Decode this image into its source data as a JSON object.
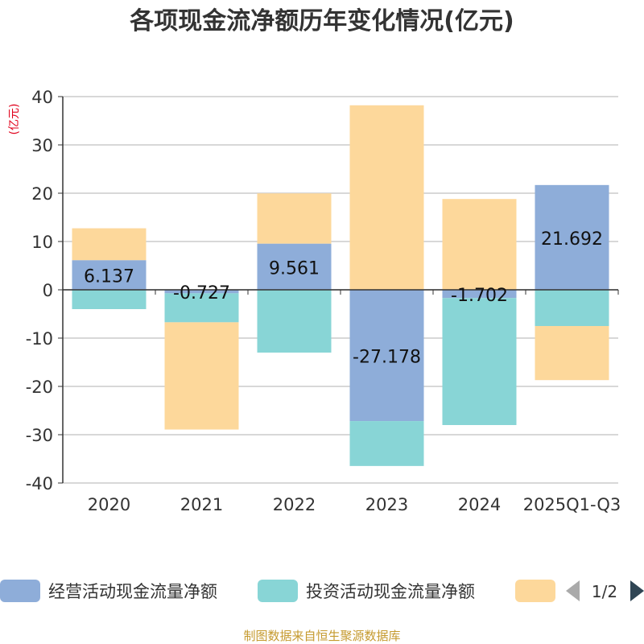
{
  "chart_data": {
    "type": "bar",
    "stacked": true,
    "title": "各项现金流净额历年变化情况(亿元)",
    "ylabel": "(亿元)",
    "ylim": [
      -40,
      40
    ],
    "yticks": [
      40,
      30,
      20,
      10,
      0,
      -10,
      -20,
      -30,
      -40
    ],
    "categories": [
      "2020",
      "2021",
      "2022",
      "2023",
      "2024",
      "2025Q1-Q3"
    ],
    "series": [
      {
        "name": "经营活动现金流量净额",
        "color": "#8eadd9",
        "values": [
          6.137,
          -0.727,
          9.561,
          -27.178,
          -1.702,
          21.692
        ],
        "show_labels": true
      },
      {
        "name": "投资活动现金流量净额",
        "color": "#88d5d6",
        "values": [
          -4.0,
          -6.0,
          -13.0,
          -9.3,
          -26.3,
          -7.5
        ],
        "show_labels": false
      },
      {
        "name": "",
        "color": "#fdd89b",
        "values": [
          6.6,
          -22.2,
          10.4,
          38.2,
          18.8,
          -11.2
        ],
        "show_labels": false
      }
    ]
  },
  "legend": {
    "page_indicator": "1/2"
  },
  "footer": {
    "source": "制图数据来自恒生聚源数据库"
  },
  "colors": {
    "title": "#333333",
    "axis_text": "#333333",
    "ylabel": "#e0001b",
    "grid": "#cccccc",
    "source": "#c59a2e",
    "pager_inactive": "#aaaaaa",
    "pager_active": "#2f4554"
  }
}
